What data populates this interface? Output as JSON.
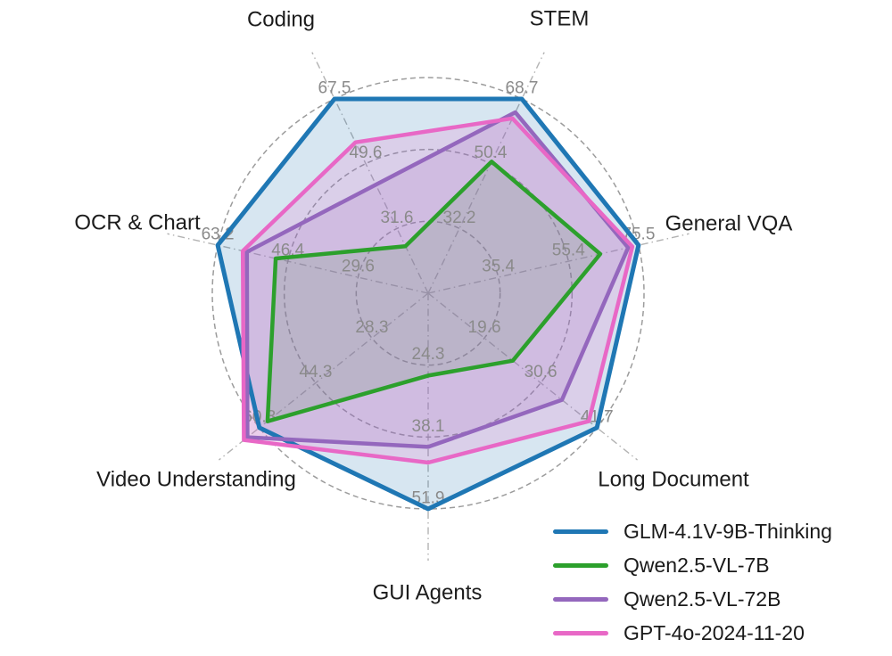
{
  "chart_data": {
    "type": "radar",
    "title": "",
    "grid": "three dashed concentric rings at 1/3, 2/3 and full radius; dashed radial spokes; per-axis numeric tick labels",
    "legend_position": "bottom-right",
    "background_color": "#ffffff",
    "grid_color": "#9c9c9c",
    "tick_label_color": "#8a8a8a",
    "axis_label_color": "#1c1c1c",
    "axes": [
      {
        "label": "Coding",
        "ring_labels": [
          "31.6",
          "49.6",
          "67.5"
        ]
      },
      {
        "label": "STEM",
        "ring_labels": [
          "32.2",
          "50.4",
          "68.7"
        ]
      },
      {
        "label": "General VQA",
        "ring_labels": [
          "35.4",
          "55.4",
          "75.5"
        ]
      },
      {
        "label": "Long Document",
        "ring_labels": [
          "19.6",
          "30.6",
          "41.7"
        ]
      },
      {
        "label": "GUI Agents",
        "ring_labels": [
          "24.3",
          "38.1",
          "51.9"
        ]
      },
      {
        "label": "Video Understanding",
        "ring_labels": [
          "28.3",
          "44.3",
          "60.3"
        ]
      },
      {
        "label": "OCR & Chart",
        "ring_labels": [
          "29.6",
          "46.4",
          "63.2"
        ]
      }
    ],
    "series": [
      {
        "name": "GLM-4.1V-9B-Thinking",
        "color": "#1f77b4",
        "values": [
          67.5,
          68.7,
          75.5,
          41.7,
          51.9,
          60.3,
          63.2
        ]
      },
      {
        "name": "Qwen2.5-VL-7B",
        "color": "#2ca02c",
        "values": [
          26.8,
          51.0,
          64.5,
          25.1,
          26.3,
          58.0,
          49.3
        ]
      },
      {
        "name": "Qwen2.5-VL-72B",
        "color": "#9467bd",
        "values": [
          43.8,
          64.9,
          72.5,
          34.8,
          40.0,
          63.7,
          56.2
        ]
      },
      {
        "name": "GPT-4o-2024-11-20",
        "color": "#e868c6",
        "values": [
          55.5,
          63.2,
          73.7,
          40.1,
          43.0,
          64.7,
          57.2
        ]
      }
    ]
  }
}
